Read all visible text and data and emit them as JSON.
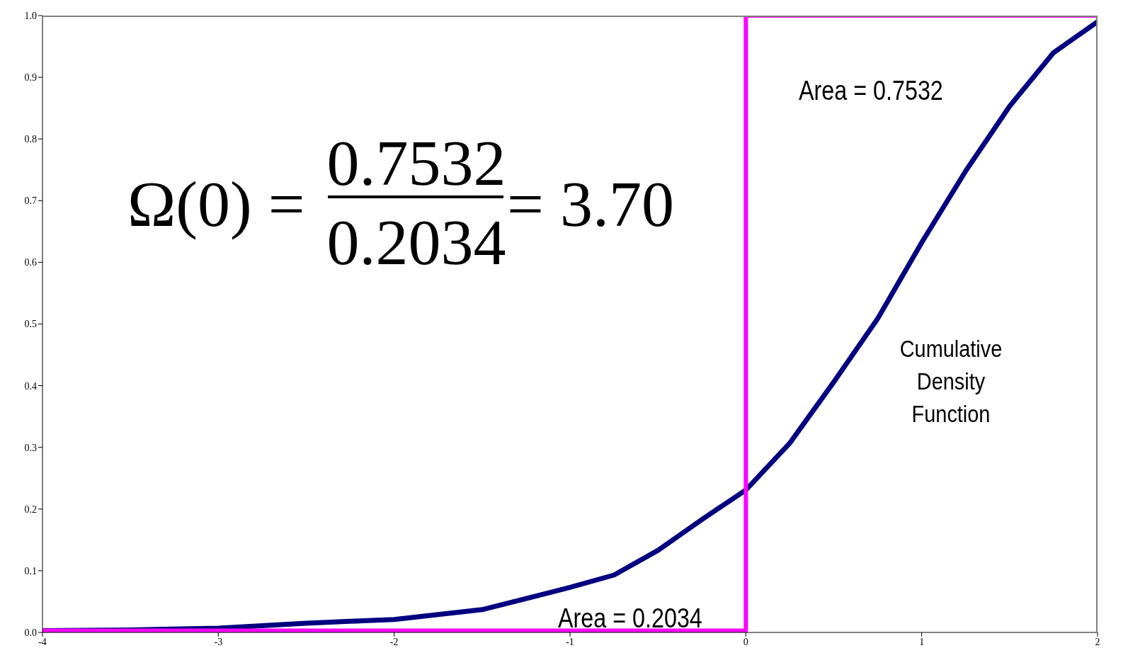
{
  "chart_data": {
    "type": "line",
    "xlim": [
      -4,
      2
    ],
    "xticks": [
      -4,
      -3,
      -2,
      -1,
      0,
      1,
      2
    ],
    "ylim": [
      0,
      1
    ],
    "yticks": [
      {
        "value": 0,
        "label": "0.0"
      },
      {
        "value": 0.1,
        "label": "0.1"
      },
      {
        "value": 0.2,
        "label": "0.2"
      },
      {
        "value": 0.3,
        "label": "0.3"
      },
      {
        "value": 0.4,
        "label": "0.4"
      },
      {
        "value": 0.5,
        "label": "0.5"
      },
      {
        "value": 0.6,
        "label": "0.6"
      },
      {
        "value": 0.7,
        "label": "0.7"
      },
      {
        "value": 0.8,
        "label": "0.8"
      },
      {
        "value": 0.9,
        "label": "0.9"
      },
      {
        "value": 1,
        "label": "1.0"
      }
    ],
    "marker": "none",
    "line_style": "solid",
    "series": [
      {
        "color": "#000080",
        "x": [
          -4,
          -3.5,
          -3,
          -2.5,
          -2.25,
          -2,
          -1.5,
          -1,
          -0.75,
          -0.5,
          -0.25,
          0,
          0.25,
          0.5,
          0.75,
          1,
          1.25,
          1.5,
          1.75,
          2
        ],
        "values": [
          0.003,
          0.004,
          0.007,
          0.015,
          0.018,
          0.021,
          0.037,
          0.073,
          0.093,
          0.133,
          0.183,
          0.231,
          0.307,
          0.406,
          0.509,
          0.632,
          0.748,
          0.853,
          0.94,
          0.99
        ]
      },
      {
        "color": "#ff00ff",
        "x": [
          -4,
          0,
          0,
          2
        ],
        "values": [
          0.003,
          0.003,
          1,
          1
        ]
      }
    ],
    "annotations": [
      "Area = 0.7532",
      "Area = 0.2034",
      "Cumulative Density Function",
      "Ω(0) =",
      "0.7532",
      "0.2034",
      "= 3.70"
    ]
  }
}
